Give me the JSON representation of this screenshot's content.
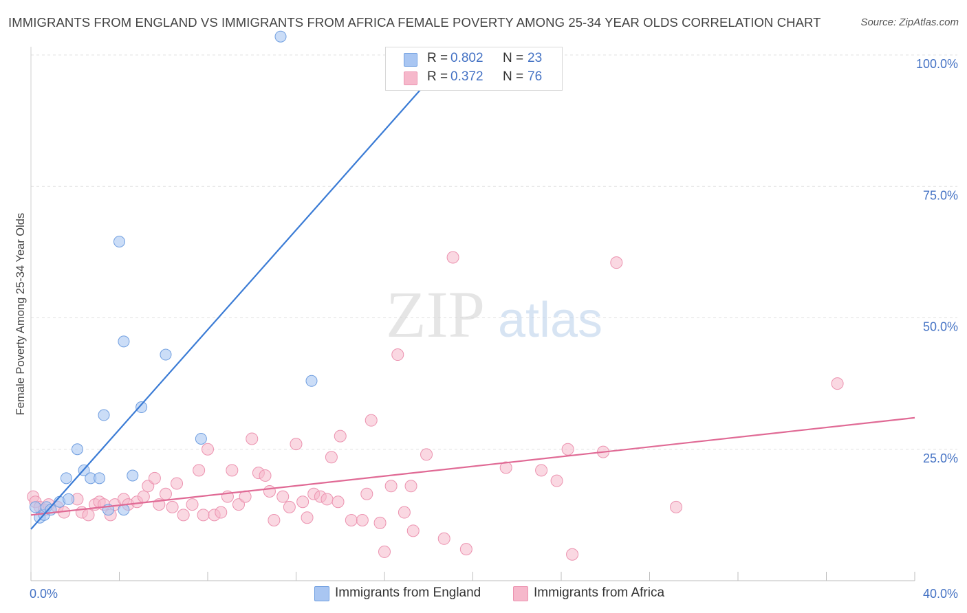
{
  "title": "IMMIGRANTS FROM ENGLAND VS IMMIGRANTS FROM AFRICA FEMALE POVERTY AMONG 25-34 YEAR OLDS CORRELATION CHART",
  "source": "Source: ZipAtlas.com",
  "watermark": {
    "zip": "ZIP",
    "atlas": "atlas"
  },
  "legend": {
    "england": {
      "r_label": "R =",
      "r_value": "0.802",
      "n_label": "N =",
      "n_value": "23"
    },
    "africa": {
      "r_label": "R =",
      "r_value": "0.372",
      "n_label": "N =",
      "n_value": "76"
    }
  },
  "colors": {
    "england_fill": "#a9c6f2",
    "england_stroke": "#6f9ee0",
    "england_line": "#3a7bd5",
    "africa_fill": "#f6b8cb",
    "africa_stroke": "#ec93b0",
    "africa_line": "#e06a95",
    "axis_label": "#4472c4",
    "grid": "#e0e0e0"
  },
  "chart_data": {
    "type": "scatter",
    "title": "IMMIGRANTS FROM ENGLAND VS IMMIGRANTS FROM AFRICA FEMALE POVERTY AMONG 25-34 YEAR OLDS CORRELATION CHART",
    "xlabel": "",
    "ylabel": "Female Poverty Among 25-34 Year Olds",
    "xlim": [
      0,
      40
    ],
    "ylim": [
      0,
      100
    ],
    "x_tick_labels": [
      "0.0%",
      "40.0%"
    ],
    "y_ticks": [
      25,
      50,
      75,
      100
    ],
    "y_tick_labels": [
      "25.0%",
      "50.0%",
      "75.0%",
      "100.0%"
    ],
    "series": [
      {
        "name": "Immigrants from England",
        "r": 0.802,
        "n": 23,
        "trend": {
          "x": [
            0.0,
            18.6
          ],
          "y": [
            9.8,
            98.0
          ]
        },
        "points": [
          {
            "x": 0.2,
            "y": 14.0
          },
          {
            "x": 0.4,
            "y": 12.0
          },
          {
            "x": 0.6,
            "y": 12.5
          },
          {
            "x": 0.7,
            "y": 14.0
          },
          {
            "x": 0.9,
            "y": 13.5
          },
          {
            "x": 1.3,
            "y": 15.0
          },
          {
            "x": 1.6,
            "y": 19.5
          },
          {
            "x": 1.7,
            "y": 15.5
          },
          {
            "x": 2.1,
            "y": 25.0
          },
          {
            "x": 2.4,
            "y": 21.0
          },
          {
            "x": 2.7,
            "y": 19.5
          },
          {
            "x": 3.1,
            "y": 19.5
          },
          {
            "x": 3.3,
            "y": 31.5
          },
          {
            "x": 3.5,
            "y": 13.5
          },
          {
            "x": 4.0,
            "y": 64.5
          },
          {
            "x": 4.2,
            "y": 45.5
          },
          {
            "x": 4.2,
            "y": 13.5
          },
          {
            "x": 4.6,
            "y": 20.0
          },
          {
            "x": 5.0,
            "y": 33.0
          },
          {
            "x": 6.1,
            "y": 43.0
          },
          {
            "x": 7.7,
            "y": 27.0
          },
          {
            "x": 11.3,
            "y": 103.5
          },
          {
            "x": 12.7,
            "y": 38.0
          }
        ]
      },
      {
        "name": "Immigrants from Africa",
        "r": 0.372,
        "n": 76,
        "trend": {
          "x": [
            0.0,
            40.0
          ],
          "y": [
            12.5,
            31.0
          ]
        },
        "points": [
          {
            "x": 0.1,
            "y": 16.0
          },
          {
            "x": 0.2,
            "y": 15.0
          },
          {
            "x": 0.4,
            "y": 14.0
          },
          {
            "x": 0.6,
            "y": 13.5
          },
          {
            "x": 0.8,
            "y": 14.5
          },
          {
            "x": 1.2,
            "y": 14.0
          },
          {
            "x": 1.5,
            "y": 13.0
          },
          {
            "x": 2.1,
            "y": 15.5
          },
          {
            "x": 2.3,
            "y": 13.0
          },
          {
            "x": 2.6,
            "y": 12.5
          },
          {
            "x": 2.9,
            "y": 14.5
          },
          {
            "x": 3.1,
            "y": 15.0
          },
          {
            "x": 3.3,
            "y": 14.5
          },
          {
            "x": 3.6,
            "y": 12.5
          },
          {
            "x": 3.8,
            "y": 14.5
          },
          {
            "x": 4.2,
            "y": 15.5
          },
          {
            "x": 4.4,
            "y": 14.5
          },
          {
            "x": 4.8,
            "y": 15.0
          },
          {
            "x": 5.1,
            "y": 16.0
          },
          {
            "x": 5.3,
            "y": 18.0
          },
          {
            "x": 5.6,
            "y": 19.5
          },
          {
            "x": 5.8,
            "y": 14.5
          },
          {
            "x": 6.1,
            "y": 16.5
          },
          {
            "x": 6.4,
            "y": 14.0
          },
          {
            "x": 6.6,
            "y": 18.5
          },
          {
            "x": 6.9,
            "y": 12.5
          },
          {
            "x": 7.3,
            "y": 14.5
          },
          {
            "x": 7.6,
            "y": 21.0
          },
          {
            "x": 7.8,
            "y": 12.5
          },
          {
            "x": 8.0,
            "y": 25.0
          },
          {
            "x": 8.3,
            "y": 12.5
          },
          {
            "x": 8.6,
            "y": 13.0
          },
          {
            "x": 8.9,
            "y": 16.0
          },
          {
            "x": 9.1,
            "y": 21.0
          },
          {
            "x": 9.4,
            "y": 14.5
          },
          {
            "x": 9.7,
            "y": 16.0
          },
          {
            "x": 10.0,
            "y": 27.0
          },
          {
            "x": 10.3,
            "y": 20.5
          },
          {
            "x": 10.6,
            "y": 20.0
          },
          {
            "x": 10.8,
            "y": 17.0
          },
          {
            "x": 11.0,
            "y": 11.5
          },
          {
            "x": 11.4,
            "y": 16.0
          },
          {
            "x": 11.7,
            "y": 14.0
          },
          {
            "x": 12.0,
            "y": 26.0
          },
          {
            "x": 12.3,
            "y": 15.0
          },
          {
            "x": 12.5,
            "y": 12.0
          },
          {
            "x": 12.8,
            "y": 16.5
          },
          {
            "x": 13.1,
            "y": 16.0
          },
          {
            "x": 13.4,
            "y": 15.5
          },
          {
            "x": 13.6,
            "y": 23.5
          },
          {
            "x": 13.9,
            "y": 15.0
          },
          {
            "x": 14.0,
            "y": 27.5
          },
          {
            "x": 14.5,
            "y": 11.5
          },
          {
            "x": 15.0,
            "y": 11.5
          },
          {
            "x": 15.2,
            "y": 16.5
          },
          {
            "x": 15.4,
            "y": 30.5
          },
          {
            "x": 15.8,
            "y": 11.0
          },
          {
            "x": 16.0,
            "y": 5.5
          },
          {
            "x": 16.3,
            "y": 18.0
          },
          {
            "x": 16.6,
            "y": 43.0
          },
          {
            "x": 16.9,
            "y": 13.0
          },
          {
            "x": 17.2,
            "y": 18.0
          },
          {
            "x": 17.3,
            "y": 9.5
          },
          {
            "x": 17.9,
            "y": 24.0
          },
          {
            "x": 18.7,
            "y": 8.0
          },
          {
            "x": 19.1,
            "y": 61.5
          },
          {
            "x": 19.7,
            "y": 6.0
          },
          {
            "x": 21.5,
            "y": 21.5
          },
          {
            "x": 23.1,
            "y": 21.0
          },
          {
            "x": 23.8,
            "y": 19.0
          },
          {
            "x": 24.3,
            "y": 25.0
          },
          {
            "x": 24.5,
            "y": 5.0
          },
          {
            "x": 25.9,
            "y": 24.5
          },
          {
            "x": 26.5,
            "y": 60.5
          },
          {
            "x": 29.2,
            "y": 14.0
          },
          {
            "x": 36.5,
            "y": 37.5
          }
        ]
      }
    ],
    "legend": [
      "Immigrants from England",
      "Immigrants from Africa"
    ]
  }
}
